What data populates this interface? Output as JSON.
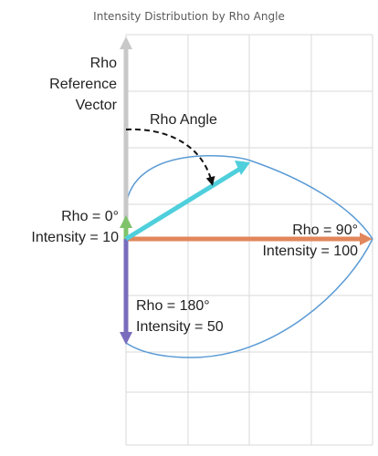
{
  "title": "Intensity Distribution by Rho Angle",
  "labels": {
    "rho_ref_line1": "Rho",
    "rho_ref_line2": "Reference",
    "rho_ref_line3": "Vector",
    "rho_angle": "Rho Angle",
    "rho0_line1": "Rho = 0°",
    "rho0_line2": "Intensity = 10",
    "rho90_line1": "Rho = 90°",
    "rho90_line2": "Intensity = 100",
    "rho180_line1": "Rho = 180°",
    "rho180_line2": "Intensity = 50"
  },
  "colors": {
    "reference": "#c8c8c8",
    "rho0": "#7ec36a",
    "rho90": "#e1875c",
    "rho180": "#7a6cbd",
    "cyan": "#4fcfdc",
    "curve": "#5b9bd5",
    "grid": "#d9d9d9"
  }
}
